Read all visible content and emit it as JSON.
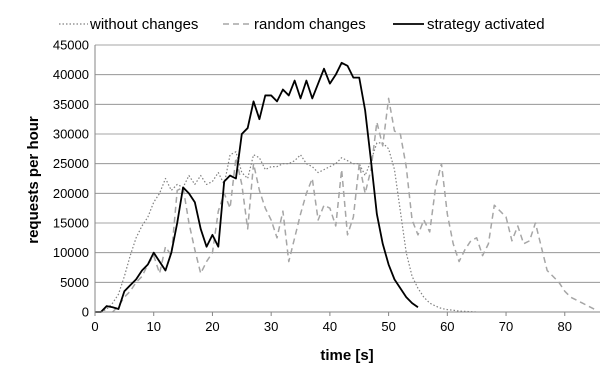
{
  "chart_data": {
    "type": "line",
    "title": "",
    "xlabel": "time [s]",
    "ylabel": "requests per hour",
    "xlim": [
      0,
      86
    ],
    "ylim": [
      0,
      45000
    ],
    "x_ticks": [
      0,
      10,
      20,
      30,
      40,
      50,
      60,
      70,
      80
    ],
    "y_ticks": [
      0,
      5000,
      10000,
      15000,
      20000,
      25000,
      30000,
      35000,
      40000,
      45000
    ],
    "grid": "horizontal",
    "legend_position": "top",
    "series": [
      {
        "name": "without changes",
        "style": "dotted",
        "color": "#808080",
        "x": [
          1,
          2,
          3,
          4,
          5,
          6,
          7,
          8,
          9,
          10,
          11,
          12,
          13,
          14,
          15,
          16,
          17,
          18,
          19,
          20,
          21,
          22,
          23,
          24,
          25,
          26,
          27,
          28,
          29,
          30,
          31,
          32,
          33,
          34,
          35,
          36,
          37,
          38,
          39,
          40,
          41,
          42,
          43,
          44,
          45,
          46,
          47,
          48,
          49,
          50,
          51,
          52,
          53,
          54,
          55,
          56,
          57,
          58,
          59,
          60,
          61,
          62,
          63,
          64,
          65
        ],
        "values": [
          0,
          500,
          1500,
          3000,
          6000,
          9500,
          12500,
          14500,
          16000,
          18500,
          20000,
          22500,
          20500,
          21500,
          21000,
          23000,
          21500,
          23000,
          21500,
          22000,
          23500,
          21500,
          26500,
          27000,
          23500,
          22500,
          26500,
          26000,
          24000,
          24500,
          24500,
          25000,
          25000,
          25500,
          26500,
          25000,
          24500,
          23500,
          24000,
          24500,
          25000,
          26000,
          25500,
          25000,
          25000,
          23000,
          25500,
          28500,
          28500,
          27500,
          24000,
          17000,
          10000,
          6000,
          4000,
          2500,
          1500,
          1000,
          600,
          400,
          300,
          150,
          100,
          50,
          0
        ]
      },
      {
        "name": "random changes",
        "style": "dashed",
        "color": "#a6a6a6",
        "x": [
          3,
          4,
          5,
          6,
          7,
          8,
          9,
          10,
          11,
          12,
          13,
          14,
          15,
          16,
          17,
          18,
          19,
          20,
          21,
          22,
          23,
          24,
          25,
          26,
          27,
          28,
          29,
          30,
          31,
          32,
          33,
          34,
          35,
          36,
          37,
          38,
          39,
          40,
          41,
          42,
          43,
          44,
          45,
          46,
          47,
          48,
          49,
          50,
          51,
          52,
          53,
          54,
          55,
          56,
          57,
          58,
          59,
          60,
          61,
          62,
          63,
          64,
          65,
          66,
          67,
          68,
          69,
          70,
          71,
          72,
          73,
          74,
          75,
          76,
          77,
          78,
          79,
          80,
          81,
          82,
          83,
          84,
          85
        ],
        "values": [
          0,
          1000,
          2500,
          3500,
          5000,
          6000,
          8000,
          9500,
          6500,
          11000,
          9500,
          20500,
          21000,
          15000,
          10500,
          6500,
          8500,
          10000,
          17000,
          20000,
          17500,
          26000,
          21500,
          14000,
          25000,
          20500,
          17500,
          15500,
          12500,
          17000,
          8500,
          12500,
          16500,
          20000,
          22500,
          15500,
          18000,
          17500,
          14500,
          24000,
          13000,
          16000,
          25000,
          20000,
          24000,
          32000,
          28000,
          36000,
          30500,
          30000,
          24500,
          15500,
          13000,
          15500,
          13500,
          21000,
          25000,
          16500,
          11500,
          8500,
          10500,
          12000,
          12500,
          9500,
          11500,
          18000,
          17000,
          16000,
          12000,
          14500,
          11500,
          12000,
          15000,
          11000,
          7000,
          6000,
          5000,
          3500,
          2500,
          2000,
          1500,
          1000,
          500
        ]
      },
      {
        "name": "strategy activated",
        "style": "solid",
        "color": "#000000",
        "x": [
          0,
          1,
          2,
          3,
          4,
          5,
          6,
          7,
          8,
          9,
          10,
          11,
          12,
          13,
          14,
          15,
          16,
          17,
          18,
          19,
          20,
          21,
          22,
          23,
          24,
          25,
          26,
          27,
          28,
          29,
          30,
          31,
          32,
          33,
          34,
          35,
          36,
          37,
          38,
          39,
          40,
          41,
          42,
          43,
          44,
          45,
          46,
          47,
          48,
          49,
          50,
          51,
          52,
          53,
          54,
          55
        ],
        "values": [
          0,
          0,
          1000,
          800,
          500,
          3500,
          4500,
          5500,
          7000,
          8000,
          10000,
          8500,
          7000,
          10000,
          15000,
          21000,
          20000,
          18500,
          14000,
          11000,
          13000,
          11000,
          22000,
          23000,
          22500,
          30000,
          31000,
          35500,
          32500,
          36500,
          36500,
          35500,
          37500,
          36500,
          39000,
          36000,
          39000,
          36000,
          38500,
          41000,
          38500,
          40000,
          42000,
          41500,
          39500,
          39500,
          34000,
          25500,
          16500,
          11500,
          8000,
          5500,
          4000,
          2500,
          1500,
          800
        ]
      }
    ]
  }
}
